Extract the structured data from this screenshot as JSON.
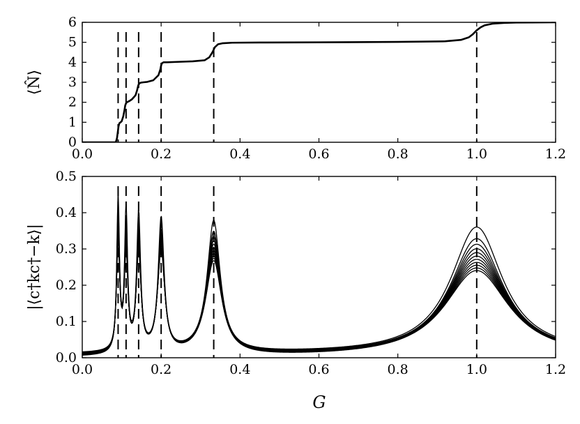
{
  "chart_data": [
    {
      "type": "line",
      "xlabel": "",
      "ylabel": "⟨N̂⟩",
      "xlim": [
        0.0,
        1.2
      ],
      "ylim": [
        0,
        6
      ],
      "xticks": [
        "0.0",
        "0.2",
        "0.4",
        "0.6",
        "0.8",
        "1.0",
        "1.2"
      ],
      "yticks": [
        "0",
        "1",
        "2",
        "3",
        "4",
        "5",
        "6"
      ],
      "vlines": [
        0.0909,
        0.1111,
        0.1429,
        0.2,
        0.3333,
        1.0
      ],
      "series": [
        {
          "x": [
            0.0,
            0.085,
            0.088,
            0.09,
            0.092,
            0.094,
            0.097,
            0.1,
            0.104,
            0.107,
            0.109,
            0.111,
            0.113,
            0.116,
            0.12,
            0.126,
            0.135,
            0.139,
            0.142,
            0.145,
            0.148,
            0.155,
            0.165,
            0.18,
            0.193,
            0.198,
            0.2,
            0.202,
            0.206,
            0.215,
            0.24,
            0.28,
            0.31,
            0.322,
            0.33,
            0.336,
            0.344,
            0.355,
            0.38,
            0.45,
            0.6,
            0.8,
            0.92,
            0.96,
            0.98,
            0.99,
            1.0,
            1.01,
            1.02,
            1.04,
            1.07,
            1.1,
            1.2
          ],
          "y": [
            0.0,
            0.0,
            0.2,
            0.5,
            0.8,
            0.95,
            1.0,
            1.05,
            1.3,
            1.6,
            1.85,
            1.95,
            2.0,
            2.03,
            2.07,
            2.15,
            2.35,
            2.6,
            2.85,
            2.95,
            2.98,
            3.0,
            3.02,
            3.1,
            3.35,
            3.65,
            3.85,
            3.95,
            4.0,
            4.0,
            4.02,
            4.05,
            4.1,
            4.25,
            4.5,
            4.75,
            4.9,
            4.95,
            4.98,
            4.99,
            5.0,
            5.02,
            5.05,
            5.12,
            5.25,
            5.4,
            5.6,
            5.75,
            5.85,
            5.93,
            5.97,
            5.99,
            6.0
          ]
        }
      ]
    },
    {
      "type": "line",
      "xlabel": "G",
      "ylabel": "|⟨c†kc†−k⟩|",
      "xlim": [
        0.0,
        1.2
      ],
      "ylim": [
        0.0,
        0.5
      ],
      "xticks": [
        "0.0",
        "0.2",
        "0.4",
        "0.6",
        "0.8",
        "1.0",
        "1.2"
      ],
      "yticks": [
        "0.0",
        "0.1",
        "0.2",
        "0.3",
        "0.4",
        "0.5"
      ],
      "vlines": [
        0.0909,
        0.1111,
        0.1429,
        0.2,
        0.3333,
        1.0
      ],
      "series_model": {
        "type": "lorentzian_peaks",
        "centers": [
          0.0909,
          0.1111,
          0.1429,
          0.2,
          0.3333,
          1.0
        ],
        "widths": [
          0.004,
          0.0045,
          0.006,
          0.009,
          0.02,
          0.08
        ],
        "top_heights": [
          0.42,
          0.385,
          0.375,
          0.365,
          0.362,
          0.35
        ],
        "bottom_heights": [
          0.3,
          0.26,
          0.27,
          0.28,
          0.26,
          0.24
        ],
        "top_baseline": 0.01,
        "count": 11
      }
    }
  ]
}
